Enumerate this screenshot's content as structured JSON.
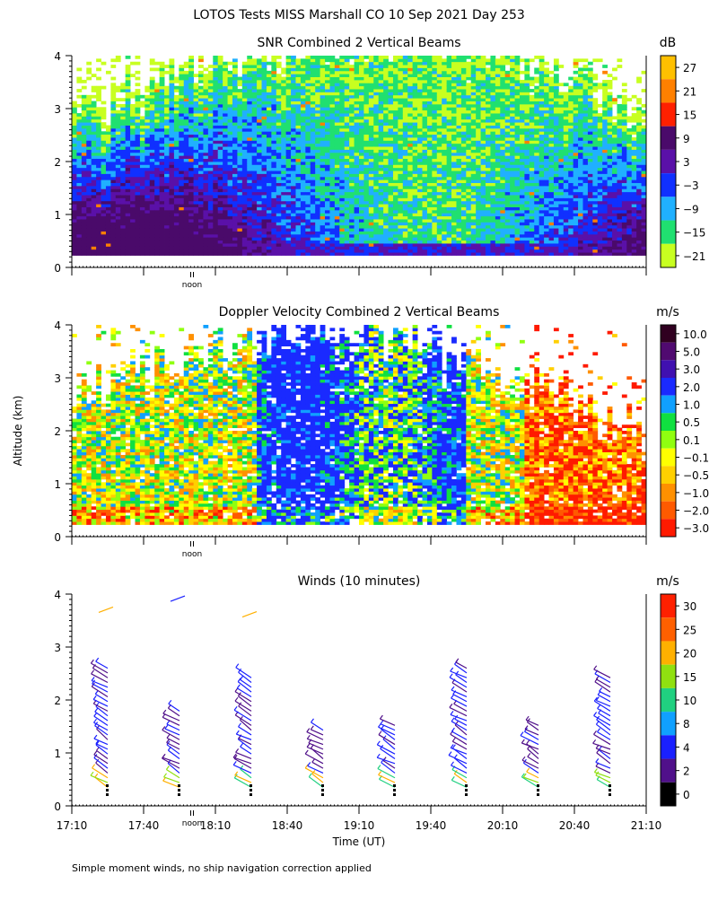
{
  "page_title": "LOTOS Tests MISS Marshall CO  10 Sep 2021 Day 253",
  "ylabel": "Altitude (km)",
  "xlabel": "Time (UT)",
  "footnote": "Simple moment winds, no ship navigation correction applied",
  "noon_label": "noon",
  "y_ticks": [
    "0",
    "1",
    "2",
    "3",
    "4"
  ],
  "x_ticks": [
    "17:10",
    "17:40",
    "18:10",
    "18:40",
    "19:10",
    "19:40",
    "20:10",
    "20:40",
    "21:10"
  ],
  "chart_data": [
    {
      "type": "heatmap",
      "title": "SNR Combined 2 Vertical Beams",
      "units": "dB",
      "xlim": [
        "17:10",
        "21:10"
      ],
      "ylim": [
        0,
        4
      ],
      "colorbar_labels": [
        "27",
        "21",
        "15",
        "9",
        "3",
        "−3",
        "−9",
        "−15",
        "−21"
      ],
      "colorbar_colors": [
        "#ffc000",
        "#ff8000",
        "#ff2000",
        "#4a0a6a",
        "#5a10a8",
        "#1030ff",
        "#20b0ff",
        "#20e070",
        "#c8ff20"
      ]
    },
    {
      "type": "heatmap",
      "title": "Doppler Velocity Combined 2 Vertical Beams",
      "units": "m/s",
      "xlim": [
        "17:10",
        "21:10"
      ],
      "ylim": [
        0,
        4
      ],
      "colorbar_labels": [
        "10.0",
        "5.0",
        "3.0",
        "2.0",
        "1.0",
        "0.5",
        "0.1",
        "−0.1",
        "−0.5",
        "−1.0",
        "−2.0",
        "−3.0"
      ],
      "colorbar_colors": [
        "#300020",
        "#500a70",
        "#4010b0",
        "#1a2aff",
        "#10a0ff",
        "#10e040",
        "#90ff10",
        "#ffff00",
        "#ffd000",
        "#ff9000",
        "#ff5a00",
        "#ff1a00"
      ]
    },
    {
      "type": "scatter",
      "title": "Winds (10 minutes)",
      "units": "m/s",
      "xlim": [
        "17:10",
        "21:10"
      ],
      "ylim": [
        0,
        4
      ],
      "profile_times": [
        "17:25",
        "17:55",
        "18:25",
        "18:55",
        "19:25",
        "19:55",
        "20:25",
        "20:55"
      ],
      "colorbar_labels": [
        "30",
        "25",
        "20",
        "15",
        "10",
        "8",
        "4",
        "2",
        "0"
      ],
      "colorbar_colors": [
        "#ff2000",
        "#ff6000",
        "#ffb000",
        "#90e010",
        "#20d080",
        "#10a0ff",
        "#1a20ff",
        "#50108a",
        "#000000"
      ]
    }
  ]
}
